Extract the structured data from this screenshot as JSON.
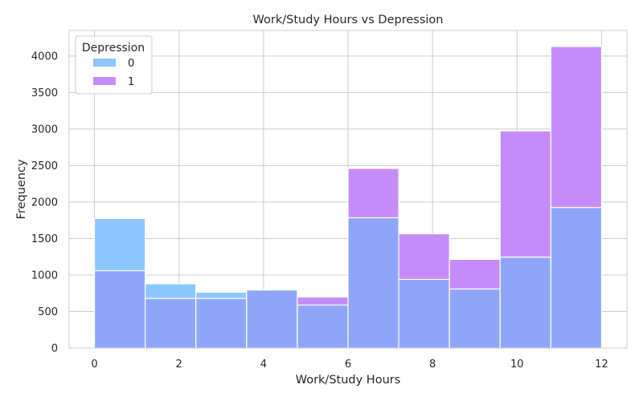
{
  "chart_data": {
    "type": "bar",
    "title": "Work/Study Hours vs Depression",
    "xlabel": "Work/Study Hours",
    "ylabel": "Frequency",
    "xlim": [
      -0.6,
      12.6
    ],
    "ylim": [
      0,
      4350
    ],
    "x_ticks": [
      0,
      2,
      4,
      6,
      8,
      10,
      12
    ],
    "y_ticks": [
      0,
      500,
      1000,
      1500,
      2000,
      2500,
      3000,
      3500,
      4000
    ],
    "bin_edges": [
      0,
      1.2,
      2.4,
      3.6,
      4.8,
      6.0,
      7.2,
      8.4,
      9.6,
      10.8,
      12.0
    ],
    "grid": true,
    "legend": {
      "title": "Depression",
      "position": "top-left"
    },
    "series": [
      {
        "name": "0",
        "color": "#8cc6fd",
        "values": [
          1775,
          880,
          765,
          800,
          590,
          1785,
          940,
          810,
          1245,
          1925
        ]
      },
      {
        "name": "1",
        "color": "#c58cf9",
        "values": [
          1060,
          680,
          680,
          795,
          700,
          2460,
          1565,
          1215,
          2975,
          4130
        ]
      }
    ],
    "overlap_color": "#8fa6f8"
  }
}
